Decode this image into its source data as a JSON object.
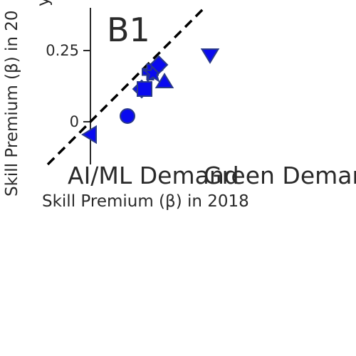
{
  "chart_data": {
    "type": "scatter",
    "panel_label": "B1",
    "xlabel": "Skill Premium (β) in 2018",
    "ylabel": "Skill Premium (β) in 20",
    "ylabel_prefix": "y",
    "yticks": [
      {
        "value": 0.25,
        "label": "0.25"
      },
      {
        "value": 0,
        "label": "0"
      }
    ],
    "category_labels": [
      "AI/ML Demand",
      "Green Demar"
    ],
    "xlim": [
      0,
      0.42
    ],
    "ylim": [
      -0.15,
      0.4
    ],
    "reference_line": {
      "style": "dashed",
      "slope": 1,
      "intercept": 0
    },
    "marker_color": "#0a0aef",
    "marker_edge": "#2a3a8a",
    "points": [
      {
        "x": 0.0,
        "y": -0.045,
        "marker": "triangle-left"
      },
      {
        "x": 0.13,
        "y": 0.02,
        "marker": "circle"
      },
      {
        "x": 0.18,
        "y": 0.115,
        "marker": "diamond"
      },
      {
        "x": 0.19,
        "y": 0.115,
        "marker": "square"
      },
      {
        "x": 0.21,
        "y": 0.175,
        "marker": "cross"
      },
      {
        "x": 0.22,
        "y": 0.17,
        "marker": "star"
      },
      {
        "x": 0.24,
        "y": 0.2,
        "marker": "diamond"
      },
      {
        "x": 0.26,
        "y": 0.14,
        "marker": "triangle-up"
      },
      {
        "x": 0.42,
        "y": 0.235,
        "marker": "triangle-down"
      }
    ]
  }
}
